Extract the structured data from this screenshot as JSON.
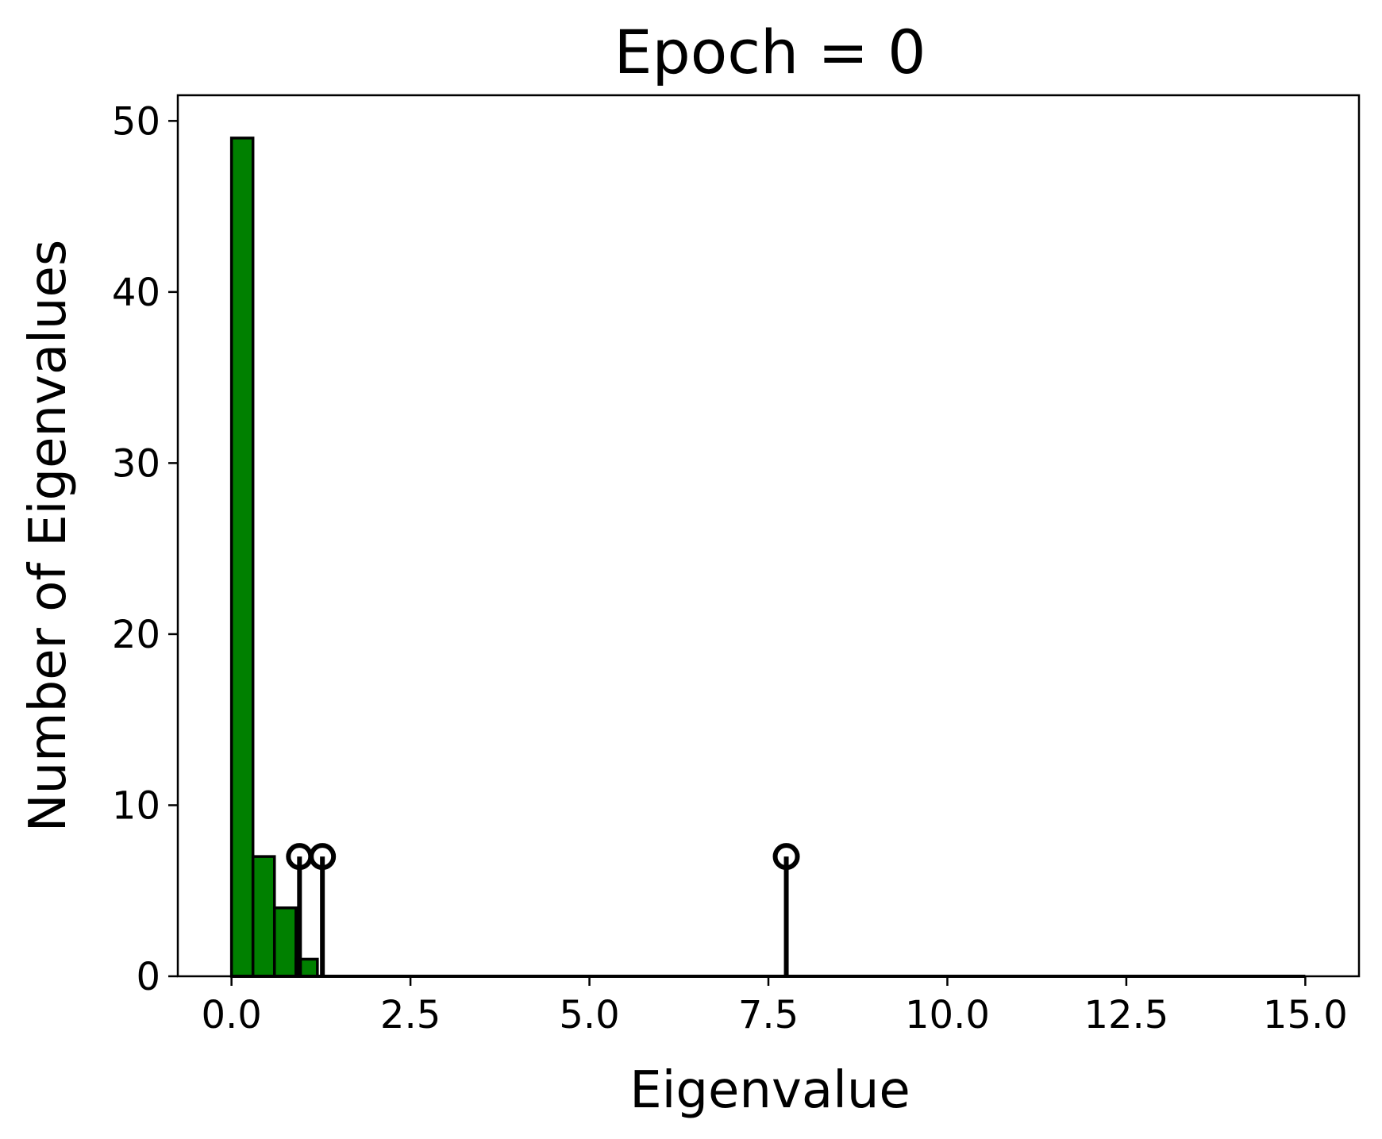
{
  "chart_data": {
    "type": "bar",
    "title": "Epoch = 0",
    "xlabel": "Eigenvalue",
    "ylabel": "Number of Eigenvalues",
    "xlim": [
      -0.75,
      15.75
    ],
    "ylim": [
      0,
      51.5
    ],
    "xticks": [
      0.0,
      2.5,
      5.0,
      7.5,
      10.0,
      12.5,
      15.0
    ],
    "xtick_labels": [
      "0.0",
      "2.5",
      "5.0",
      "7.5",
      "10.0",
      "12.5",
      "15.0"
    ],
    "yticks": [
      0,
      10,
      20,
      30,
      40,
      50
    ],
    "ytick_labels": [
      "0",
      "10",
      "20",
      "30",
      "40",
      "50"
    ],
    "grid": false,
    "bar_color": "#008000",
    "histogram": {
      "bin_width": 0.3,
      "x_start": 0.0,
      "x_end": 15.0,
      "counts": [
        49,
        7,
        4,
        1
      ]
    },
    "stems": {
      "x": [
        0.95,
        1.27,
        7.75
      ],
      "y": [
        7,
        7,
        7
      ],
      "color": "#000000"
    }
  }
}
